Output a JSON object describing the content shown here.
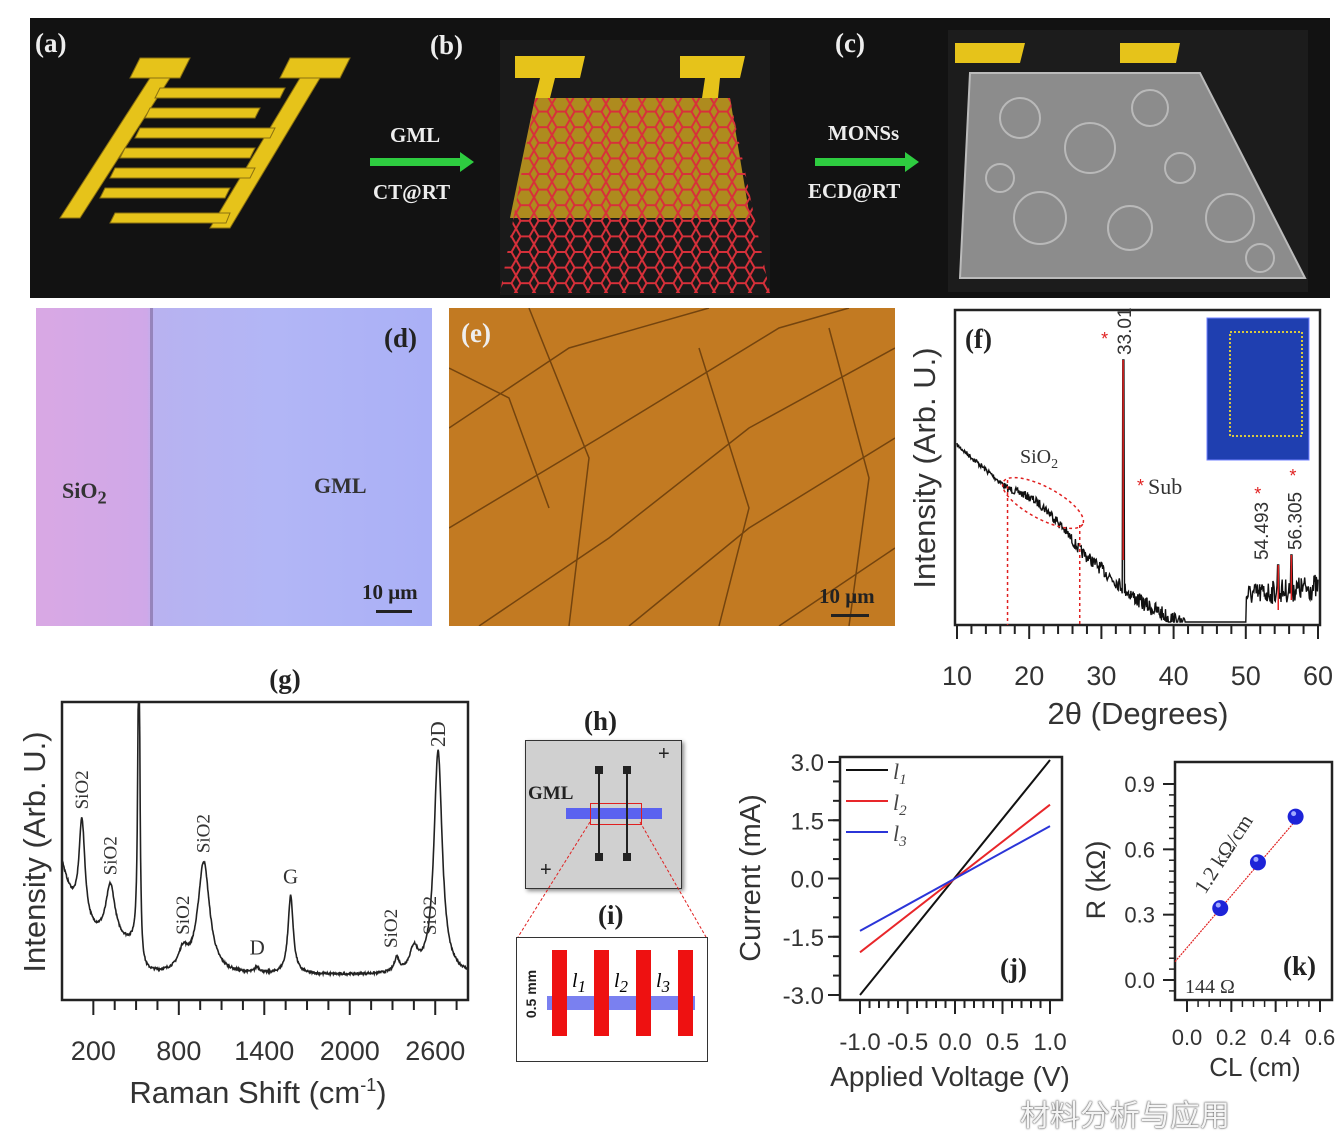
{
  "panels": {
    "a": {
      "label": "(a)"
    },
    "b": {
      "label": "(b)",
      "arrow_top": "GML",
      "arrow_bottom": "CT@RT"
    },
    "c": {
      "label": "(c)",
      "arrow_top": "MONSs",
      "arrow_bottom": "ECD@RT"
    },
    "d": {
      "label": "(d)",
      "left_text": "SiO",
      "left_sub": "2",
      "right_text": "GML",
      "scale": "10 μm"
    },
    "e": {
      "label": "(e)",
      "scale": "10 μm"
    },
    "h": {
      "label": "(h)",
      "text": "GML"
    },
    "i": {
      "label": "(i)",
      "dimension": "0.5 mm",
      "segments": [
        "l",
        "l",
        "l"
      ],
      "segment_subs": [
        "1",
        "2",
        "3"
      ]
    }
  },
  "colors": {
    "electrode_gold": "#e6c31a",
    "graphene_red": "#d8303a",
    "arrow_green": "#2ecc40",
    "substrate_blue": "#1f3fb0",
    "l1": "#111111",
    "l2": "#e8262a",
    "l3": "#2b35d8",
    "point_blue": "#1d23d8",
    "peak_red": "#e02020"
  },
  "chart_data": [
    {
      "id": "f",
      "panel_label": "(f)",
      "type": "line",
      "xlabel": "2θ (Degrees)",
      "ylabel": "Intensity (Arb. U.)",
      "xlim": [
        10,
        60
      ],
      "xticks": [
        10,
        20,
        30,
        40,
        50,
        60
      ],
      "peaks": [
        {
          "x": 33.01,
          "label": "33.01"
        },
        {
          "x": 54.493,
          "label": "54.493"
        },
        {
          "x": 56.305,
          "label": "56.305"
        }
      ],
      "annotations": [
        {
          "text": "SiO",
          "sub": "2",
          "x_range": [
            17,
            27
          ]
        },
        {
          "text": "Sub",
          "marker": "*"
        }
      ],
      "inset": "substrate photo"
    },
    {
      "id": "g",
      "panel_label": "(g)",
      "type": "line",
      "xlabel": "Raman Shift (cm",
      "xlabel_sup": "-1",
      "xlabel_end": ")",
      "ylabel": "Intensity (Arb. U.)",
      "xlim": [
        -20,
        2830
      ],
      "xticks": [
        200,
        800,
        1400,
        2000,
        2600
      ],
      "peaks": [
        {
          "x": 120,
          "height": 0.36,
          "width": 25,
          "label": "SiO2"
        },
        {
          "x": 320,
          "height": 0.2,
          "width": 40,
          "label": "SiO2"
        },
        {
          "x": 520,
          "height": 1.3,
          "width": 8,
          "label": ""
        },
        {
          "x": 830,
          "height": 0.07,
          "width": 40,
          "label": "SiO2"
        },
        {
          "x": 975,
          "height": 0.4,
          "width": 50,
          "label": "SiO2"
        },
        {
          "x": 1350,
          "height": 0.02,
          "width": 20,
          "label": "D"
        },
        {
          "x": 1585,
          "height": 0.28,
          "width": 22,
          "label": "G"
        },
        {
          "x": 2330,
          "height": 0.05,
          "width": 20,
          "label": "SiO2"
        },
        {
          "x": 2450,
          "height": 0.08,
          "width": 35,
          "label": "SiO2"
        },
        {
          "x": 2620,
          "height": 0.8,
          "width": 35,
          "label": "2D"
        }
      ]
    },
    {
      "id": "j",
      "panel_label": "(j)",
      "type": "line",
      "xlabel": "Applied Voltage (V)",
      "ylabel": "Current (mA)",
      "xlim": [
        -1.1,
        1.1
      ],
      "ylim": [
        -3.2,
        3.2
      ],
      "xticks": [
        "-1.0",
        "-0.5",
        "0.0",
        "0.5",
        "1.0"
      ],
      "yticks": [
        "-3.0",
        "-1.5",
        "0.0",
        "1.5",
        "3.0"
      ],
      "legend": "top-left",
      "series": [
        {
          "name": "l",
          "sub": "1",
          "x": [
            -1.0,
            1.0
          ],
          "y": [
            -3.0,
            3.05
          ]
        },
        {
          "name": "l",
          "sub": "2",
          "x": [
            -1.0,
            1.0
          ],
          "y": [
            -1.9,
            1.9
          ]
        },
        {
          "name": "l",
          "sub": "3",
          "x": [
            -1.0,
            1.0
          ],
          "y": [
            -1.35,
            1.35
          ]
        }
      ]
    },
    {
      "id": "k",
      "panel_label": "(k)",
      "type": "scatter",
      "xlabel": "CL (cm)",
      "ylabel": "R (kΩ)",
      "xlim": [
        -0.05,
        0.65
      ],
      "ylim": [
        -0.1,
        1.0
      ],
      "xticks": [
        "0.0",
        "0.2",
        "0.4",
        "0.6"
      ],
      "yticks": [
        "0.0",
        "0.3",
        "0.6",
        "0.9"
      ],
      "points": [
        {
          "x": 0.15,
          "y": 0.33
        },
        {
          "x": 0.32,
          "y": 0.54
        },
        {
          "x": 0.49,
          "y": 0.75
        }
      ],
      "fit": {
        "intercept": 0.144,
        "slope": 1.2
      },
      "annotations": [
        "1.2 kΩ/cm",
        "144 Ω"
      ]
    }
  ],
  "watermark": "材料分析与应用"
}
